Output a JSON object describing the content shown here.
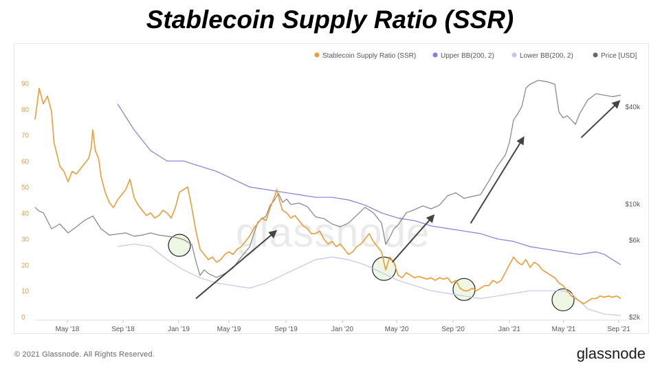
{
  "title": "Stablecoin Supply Ratio (SSR)",
  "watermark": "glassnode",
  "copyright": "© 2021 Glassnode. All Rights Reserved.",
  "brand": "glassnode",
  "colors": {
    "ssr": "#f09a35",
    "upper_bb": "#7b7fe0",
    "lower_bb": "#c3c5ef",
    "price": "#8a8a8a",
    "arrow": "#444444",
    "highlight": "#e7f2d9"
  },
  "chart_data": {
    "type": "line",
    "x_ticks": [
      "May '18",
      "Sep '18",
      "Jan '19",
      "May '19",
      "Sep '19",
      "Jan '20",
      "May '20",
      "Sep '20",
      "Jan '21",
      "May '21",
      "Sep '21"
    ],
    "y_left_ticks": [
      "0",
      "10",
      "20",
      "30",
      "40",
      "50",
      "60",
      "70",
      "80",
      "90"
    ],
    "y_right_ticks": [
      "$2k",
      "$6k",
      "$10k",
      "$40k"
    ],
    "legend": [
      "Stablecoin Supply Ratio (SSR)",
      "Upper BB(200, 2)",
      "Lower BB(200, 2)",
      "Price [USD]"
    ],
    "legend_position": "top-right",
    "series": [
      {
        "name": "Stablecoin Supply Ratio (SSR)",
        "axis": "left",
        "points": [
          [
            0,
            76
          ],
          [
            0.5,
            88
          ],
          [
            1,
            82
          ],
          [
            1.5,
            85
          ],
          [
            2,
            79
          ],
          [
            2.3,
            67
          ],
          [
            2.7,
            62
          ],
          [
            3,
            58
          ],
          [
            3.5,
            56
          ],
          [
            4,
            52
          ],
          [
            4.5,
            56
          ],
          [
            5,
            55
          ],
          [
            5.5,
            57
          ],
          [
            6,
            59
          ],
          [
            6.5,
            61
          ],
          [
            6.8,
            65
          ],
          [
            7,
            72
          ],
          [
            7.3,
            64
          ],
          [
            7.7,
            61
          ],
          [
            8,
            54
          ],
          [
            8.5,
            48
          ],
          [
            9,
            44
          ],
          [
            9.5,
            42
          ],
          [
            10,
            45
          ],
          [
            10.5,
            47
          ],
          [
            11,
            49
          ],
          [
            11.5,
            53
          ],
          [
            12,
            46
          ],
          [
            12.5,
            43
          ],
          [
            13,
            41
          ],
          [
            13.5,
            39
          ],
          [
            14,
            40
          ],
          [
            14.5,
            38
          ],
          [
            15,
            39
          ],
          [
            15.5,
            41
          ],
          [
            16,
            40
          ],
          [
            16.5,
            38
          ],
          [
            17,
            42
          ],
          [
            17.5,
            48
          ],
          [
            18,
            49
          ],
          [
            18.5,
            50
          ],
          [
            19,
            42
          ],
          [
            19.5,
            33
          ],
          [
            20,
            26
          ],
          [
            20.5,
            24
          ],
          [
            21,
            22
          ],
          [
            21.5,
            23
          ],
          [
            22,
            21
          ],
          [
            22.5,
            22
          ],
          [
            23,
            24
          ],
          [
            23.5,
            25
          ],
          [
            24,
            24
          ],
          [
            24.5,
            26
          ],
          [
            25,
            27
          ],
          [
            25.5,
            29
          ],
          [
            26,
            31
          ],
          [
            26.5,
            34
          ],
          [
            27,
            36
          ],
          [
            27.5,
            38
          ],
          [
            28,
            37
          ],
          [
            28.5,
            42
          ],
          [
            29,
            46
          ],
          [
            29.3,
            49
          ],
          [
            29.7,
            44
          ],
          [
            30,
            41
          ],
          [
            30.5,
            40
          ],
          [
            31,
            38
          ],
          [
            31.5,
            39
          ],
          [
            32,
            37
          ],
          [
            32.5,
            35
          ],
          [
            33,
            34
          ],
          [
            33.5,
            32
          ],
          [
            34,
            32
          ],
          [
            34.5,
            33
          ],
          [
            35,
            30
          ],
          [
            35.5,
            28
          ],
          [
            36,
            29
          ],
          [
            36.5,
            27
          ],
          [
            37,
            28
          ],
          [
            37.5,
            26
          ],
          [
            38,
            24
          ],
          [
            38.5,
            25
          ],
          [
            39,
            27
          ],
          [
            39.5,
            28
          ],
          [
            40,
            30
          ],
          [
            40.5,
            32
          ],
          [
            41,
            29
          ],
          [
            41.5,
            27
          ],
          [
            42,
            25
          ],
          [
            42.5,
            18
          ],
          [
            43,
            23
          ],
          [
            43.5,
            21
          ],
          [
            44,
            16
          ],
          [
            44.5,
            15
          ],
          [
            45,
            17
          ],
          [
            45.5,
            16
          ],
          [
            46,
            15
          ],
          [
            46.5,
            15.5
          ],
          [
            47,
            15
          ],
          [
            47.5,
            14.5
          ],
          [
            48,
            15
          ],
          [
            48.5,
            14
          ],
          [
            49,
            15
          ],
          [
            49.5,
            14.5
          ],
          [
            50,
            15
          ],
          [
            50.5,
            13
          ],
          [
            51,
            14
          ],
          [
            51.5,
            11
          ],
          [
            52,
            10
          ],
          [
            52.5,
            10
          ],
          [
            53,
            11
          ],
          [
            53.5,
            10
          ],
          [
            54,
            11
          ],
          [
            54.5,
            12
          ],
          [
            55,
            12
          ],
          [
            55.5,
            14
          ],
          [
            56,
            13
          ],
          [
            56.5,
            14
          ],
          [
            57,
            17
          ],
          [
            57.5,
            20
          ],
          [
            58,
            23
          ],
          [
            58.5,
            21
          ],
          [
            59,
            20
          ],
          [
            59.5,
            22
          ],
          [
            60,
            19
          ],
          [
            60.5,
            21
          ],
          [
            61,
            20
          ],
          [
            61.5,
            18
          ],
          [
            62,
            17
          ],
          [
            62.5,
            16
          ],
          [
            63,
            15
          ],
          [
            63.5,
            13
          ],
          [
            64,
            12
          ],
          [
            64.5,
            10
          ],
          [
            65,
            8
          ],
          [
            65.5,
            7
          ],
          [
            66,
            6
          ],
          [
            66.5,
            5
          ],
          [
            67,
            6
          ],
          [
            67.5,
            7
          ],
          [
            68,
            7
          ],
          [
            68.5,
            8
          ],
          [
            69,
            7.5
          ],
          [
            69.5,
            8
          ],
          [
            70,
            7.5
          ],
          [
            70.5,
            8
          ],
          [
            71,
            7
          ]
        ]
      },
      {
        "name": "Upper BB(200, 2)",
        "axis": "left",
        "points": [
          [
            10,
            82
          ],
          [
            12,
            72
          ],
          [
            14,
            64
          ],
          [
            16,
            60
          ],
          [
            18,
            60
          ],
          [
            20,
            58
          ],
          [
            22,
            56
          ],
          [
            24,
            53
          ],
          [
            26,
            50
          ],
          [
            28,
            49
          ],
          [
            30,
            48
          ],
          [
            32,
            47
          ],
          [
            34,
            46
          ],
          [
            36,
            46
          ],
          [
            38,
            45
          ],
          [
            40,
            43
          ],
          [
            42,
            40
          ],
          [
            44,
            38
          ],
          [
            46,
            37
          ],
          [
            48,
            35
          ],
          [
            50,
            34
          ],
          [
            52,
            33
          ],
          [
            54,
            32
          ],
          [
            56,
            30
          ],
          [
            58,
            29
          ],
          [
            60,
            27
          ],
          [
            62,
            26
          ],
          [
            64,
            25
          ],
          [
            66,
            24
          ],
          [
            67,
            24.5
          ],
          [
            68,
            25
          ],
          [
            69,
            24
          ],
          [
            70,
            22
          ],
          [
            71,
            20
          ]
        ]
      },
      {
        "name": "Lower BB(200, 2)",
        "axis": "left",
        "points": [
          [
            10,
            27
          ],
          [
            12,
            28
          ],
          [
            14,
            27
          ],
          [
            16,
            22
          ],
          [
            18,
            18
          ],
          [
            20,
            15
          ],
          [
            22,
            13
          ],
          [
            24,
            12
          ],
          [
            26,
            11
          ],
          [
            28,
            13
          ],
          [
            30,
            16
          ],
          [
            32,
            19
          ],
          [
            34,
            22
          ],
          [
            36,
            23
          ],
          [
            38,
            22
          ],
          [
            40,
            20
          ],
          [
            42,
            17
          ],
          [
            44,
            14
          ],
          [
            46,
            12
          ],
          [
            48,
            10
          ],
          [
            50,
            9
          ],
          [
            52,
            8
          ],
          [
            54,
            7
          ],
          [
            56,
            8
          ],
          [
            58,
            9
          ],
          [
            60,
            10
          ],
          [
            62,
            10
          ],
          [
            64,
            10
          ],
          [
            65,
            9
          ],
          [
            66,
            6
          ],
          [
            67,
            3
          ],
          [
            68,
            2
          ],
          [
            69,
            1
          ],
          [
            71,
            0.5
          ]
        ]
      },
      {
        "name": "Price [USD]",
        "axis": "right",
        "points": [
          [
            0,
            9500
          ],
          [
            0.5,
            9000
          ],
          [
            1,
            8800
          ],
          [
            2,
            7000
          ],
          [
            3,
            7500
          ],
          [
            4,
            6600
          ],
          [
            5,
            7200
          ],
          [
            6,
            7900
          ],
          [
            7,
            8400
          ],
          [
            8,
            7000
          ],
          [
            9,
            6400
          ],
          [
            10,
            6500
          ],
          [
            11,
            6600
          ],
          [
            12,
            6300
          ],
          [
            13,
            6400
          ],
          [
            14,
            6600
          ],
          [
            15,
            6400
          ],
          [
            16,
            6300
          ],
          [
            17,
            6200
          ],
          [
            18,
            6000
          ],
          [
            19,
            5600
          ],
          [
            19.5,
            4400
          ],
          [
            20,
            3600
          ],
          [
            20.5,
            3900
          ],
          [
            21,
            3700
          ],
          [
            22,
            3500
          ],
          [
            23,
            3700
          ],
          [
            24,
            4000
          ],
          [
            25,
            4700
          ],
          [
            26,
            5400
          ],
          [
            27,
            7700
          ],
          [
            28,
            8400
          ],
          [
            28.5,
            9800
          ],
          [
            29,
            10500
          ],
          [
            29.5,
            11600
          ],
          [
            30,
            10200
          ],
          [
            30.5,
            10700
          ],
          [
            31,
            9900
          ],
          [
            32,
            10100
          ],
          [
            33,
            9600
          ],
          [
            34,
            8300
          ],
          [
            35,
            8100
          ],
          [
            36,
            7500
          ],
          [
            37,
            7200
          ],
          [
            38,
            7600
          ],
          [
            39,
            8500
          ],
          [
            40,
            9500
          ],
          [
            41,
            8800
          ],
          [
            42,
            7600
          ],
          [
            42.5,
            5600
          ],
          [
            43,
            6200
          ],
          [
            43.5,
            7000
          ],
          [
            44,
            7400
          ],
          [
            45,
            8800
          ],
          [
            46,
            9200
          ],
          [
            47,
            9700
          ],
          [
            48,
            9300
          ],
          [
            49,
            9800
          ],
          [
            50,
            11200
          ],
          [
            51,
            11700
          ],
          [
            52,
            10800
          ],
          [
            53,
            11100
          ],
          [
            54,
            11400
          ],
          [
            55,
            13800
          ],
          [
            56,
            17000
          ],
          [
            57,
            20000
          ],
          [
            57.5,
            24000
          ],
          [
            58,
            33000
          ],
          [
            58.5,
            36000
          ],
          [
            59,
            40000
          ],
          [
            59.5,
            52000
          ],
          [
            60,
            55000
          ],
          [
            61,
            58000
          ],
          [
            62,
            57000
          ],
          [
            63,
            55000
          ],
          [
            63.5,
            37000
          ],
          [
            64,
            34000
          ],
          [
            64.5,
            35000
          ],
          [
            65,
            33000
          ],
          [
            65.5,
            31000
          ],
          [
            66,
            36000
          ],
          [
            67,
            44000
          ],
          [
            68,
            48000
          ],
          [
            69,
            47000
          ],
          [
            70,
            46000
          ],
          [
            71,
            47000
          ]
        ]
      }
    ],
    "annotations": [
      "arrows indicating price rallies following SSR touching the lower band",
      "circles highlighting SSR near lower Bollinger band"
    ]
  }
}
